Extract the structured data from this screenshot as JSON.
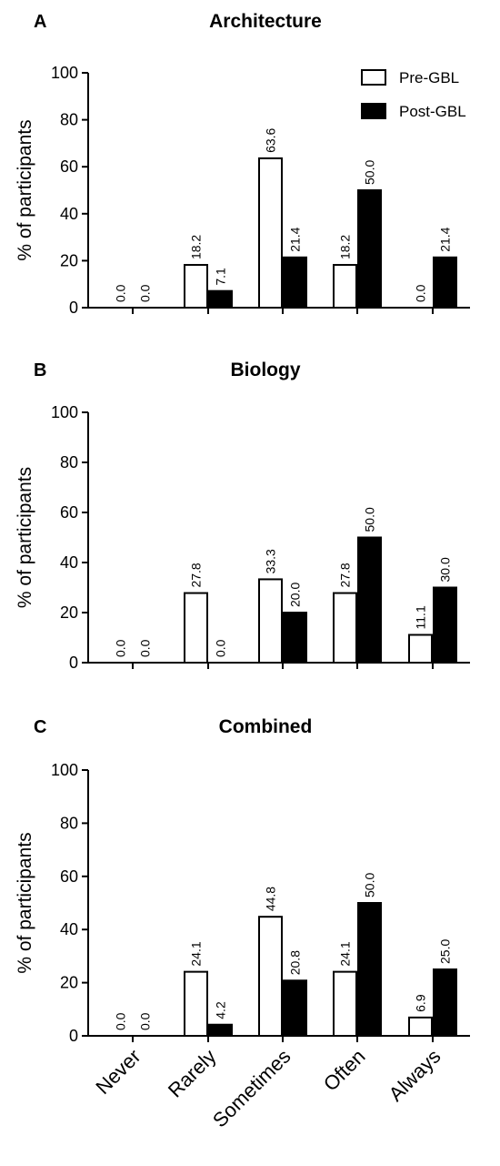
{
  "chart_data": [
    {
      "type": "bar",
      "panel": "A",
      "title": "Architecture",
      "ylabel": "% of participants",
      "ylim": [
        0,
        100
      ],
      "yticks": [
        "0",
        "20",
        "40",
        "60",
        "80",
        "100"
      ],
      "categories": [
        "Never",
        "Rarely",
        "Sometimes",
        "Often",
        "Always"
      ],
      "series": [
        {
          "name": "Pre-GBL",
          "color": "#ffffff",
          "values": [
            0.0,
            18.2,
            63.6,
            18.2,
            0.0
          ],
          "labels": [
            "0.0",
            "18.2",
            "63.6",
            "18.2",
            "0.0"
          ]
        },
        {
          "name": "Post-GBL",
          "color": "#000000",
          "values": [
            0.0,
            7.1,
            21.4,
            50.0,
            21.4
          ],
          "labels": [
            "0.0",
            "7.1",
            "21.4",
            "50.0",
            "21.4"
          ]
        }
      ],
      "legend": "top-right"
    },
    {
      "type": "bar",
      "panel": "B",
      "title": "Biology",
      "ylabel": "% of participants",
      "ylim": [
        0,
        100
      ],
      "yticks": [
        "0",
        "20",
        "40",
        "60",
        "80",
        "100"
      ],
      "categories": [
        "Never",
        "Rarely",
        "Sometimes",
        "Often",
        "Always"
      ],
      "series": [
        {
          "name": "Pre-GBL",
          "color": "#ffffff",
          "values": [
            0.0,
            27.8,
            33.3,
            27.8,
            11.1
          ],
          "labels": [
            "0.0",
            "27.8",
            "33.3",
            "27.8",
            "11.1"
          ]
        },
        {
          "name": "Post-GBL",
          "color": "#000000",
          "values": [
            0.0,
            0.0,
            20.0,
            50.0,
            30.0
          ],
          "labels": [
            "0.0",
            "0.0",
            "20.0",
            "50.0",
            "30.0"
          ]
        }
      ]
    },
    {
      "type": "bar",
      "panel": "C",
      "title": "Combined",
      "ylabel": "% of participants",
      "ylim": [
        0,
        100
      ],
      "yticks": [
        "0",
        "20",
        "40",
        "60",
        "80",
        "100"
      ],
      "categories": [
        "Never",
        "Rarely",
        "Sometimes",
        "Often",
        "Always"
      ],
      "show_category_labels": true,
      "series": [
        {
          "name": "Pre-GBL",
          "color": "#ffffff",
          "values": [
            0.0,
            24.1,
            44.8,
            24.1,
            6.9
          ],
          "labels": [
            "0.0",
            "24.1",
            "44.8",
            "24.1",
            "6.9"
          ]
        },
        {
          "name": "Post-GBL",
          "color": "#000000",
          "values": [
            0.0,
            4.2,
            20.8,
            50.0,
            25.0
          ],
          "labels": [
            "0.0",
            "4.2",
            "20.8",
            "50.0",
            "25.0"
          ]
        }
      ]
    }
  ]
}
